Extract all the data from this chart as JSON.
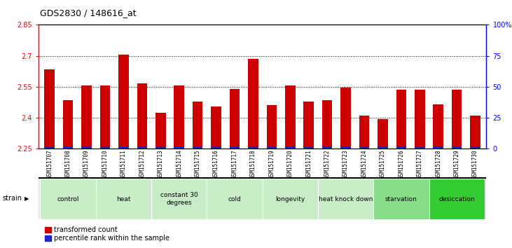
{
  "title": "GDS2830 / 148616_at",
  "samples": [
    "GSM151707",
    "GSM151708",
    "GSM151709",
    "GSM151710",
    "GSM151711",
    "GSM151712",
    "GSM151713",
    "GSM151714",
    "GSM151715",
    "GSM151716",
    "GSM151717",
    "GSM151718",
    "GSM151719",
    "GSM151720",
    "GSM151721",
    "GSM151722",
    "GSM151723",
    "GSM151724",
    "GSM151725",
    "GSM151726",
    "GSM151727",
    "GSM151728",
    "GSM151729",
    "GSM151730"
  ],
  "red_values": [
    2.635,
    2.485,
    2.555,
    2.555,
    2.705,
    2.565,
    2.425,
    2.555,
    2.48,
    2.455,
    2.54,
    2.685,
    2.46,
    2.555,
    2.48,
    2.485,
    2.545,
    2.41,
    2.395,
    2.535,
    2.535,
    2.465,
    2.535,
    2.41
  ],
  "blue_values": [
    0.012,
    0.012,
    0.012,
    0.012,
    0.012,
    0.012,
    0.012,
    0.012,
    0.012,
    0.012,
    0.012,
    0.012,
    0.012,
    0.012,
    0.012,
    0.012,
    0.012,
    0.012,
    0.012,
    0.012,
    0.012,
    0.012,
    0.012,
    0.012
  ],
  "y_min": 2.25,
  "y_max": 2.85,
  "y_ticks": [
    2.25,
    2.4,
    2.55,
    2.7,
    2.85
  ],
  "y_ticks_right_labels": [
    "0",
    "25",
    "50",
    "75",
    "100%"
  ],
  "groups_data": [
    {
      "label": "control",
      "indices": [
        0,
        1,
        2
      ],
      "color": "#c8ecc8"
    },
    {
      "label": "heat",
      "indices": [
        3,
        4,
        5
      ],
      "color": "#c8ecc8"
    },
    {
      "label": "constant 30\ndegrees",
      "indices": [
        6,
        7,
        8
      ],
      "color": "#c8ecc8"
    },
    {
      "label": "cold",
      "indices": [
        9,
        10,
        11
      ],
      "color": "#c8ecc8"
    },
    {
      "label": "longevity",
      "indices": [
        12,
        13,
        14
      ],
      "color": "#c8ecc8"
    },
    {
      "label": "heat knock down",
      "indices": [
        15,
        16,
        17
      ],
      "color": "#c8ecc8"
    },
    {
      "label": "starvation",
      "indices": [
        18,
        19,
        20
      ],
      "color": "#88dd88"
    },
    {
      "label": "desiccation",
      "indices": [
        21,
        22,
        23
      ],
      "color": "#33cc33"
    }
  ],
  "bar_color_red": "#cc0000",
  "bar_color_blue": "#2222cc",
  "bar_width": 0.55,
  "legend_red": "transformed count",
  "legend_blue": "percentile rank within the sample",
  "title_fontsize": 9,
  "tick_fontsize": 7,
  "group_fontsize": 6.5,
  "xtick_fontsize": 5.5,
  "legend_fontsize": 7
}
